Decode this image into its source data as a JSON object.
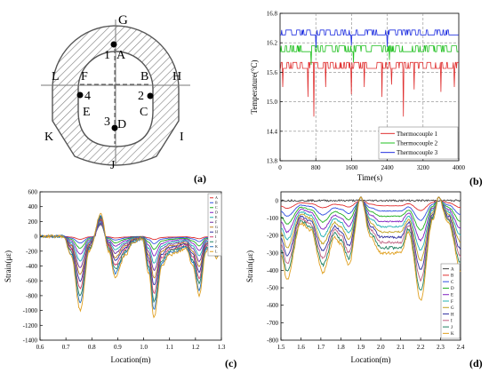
{
  "panels": {
    "a": {
      "tag": "(a)",
      "labels": {
        "G": "G",
        "A": "A",
        "B": "B",
        "C": "C",
        "D": "D",
        "E": "E",
        "F": "F",
        "H": "H",
        "I": "I",
        "J": "J",
        "K": "K",
        "L": "L",
        "n1": "1",
        "n2": "2",
        "n3": "3",
        "n4": "4"
      }
    },
    "b": {
      "tag": "(b)"
    },
    "c": {
      "tag": "(c)"
    },
    "d": {
      "tag": "(d)"
    }
  },
  "chart_data": [
    {
      "id": "b",
      "type": "line",
      "xlabel": "Time(s)",
      "ylabel": "Temperature(°C)",
      "xlim": [
        0,
        4000
      ],
      "ylim": [
        13.8,
        16.8
      ],
      "xticks": [
        0,
        800,
        1600,
        2400,
        3200,
        4000
      ],
      "yticks": [
        13.8,
        14.4,
        15.0,
        15.6,
        16.2,
        16.8
      ],
      "grid": "dashed",
      "legend": "bottom-right",
      "series": [
        {
          "name": "Thermocouple 1",
          "color": "#e03030",
          "base": 15.68,
          "band": 0.12,
          "spikes": [
            [
              60,
              15.3
            ],
            [
              150,
              15.2
            ],
            [
              620,
              15.1
            ],
            [
              760,
              14.7
            ],
            [
              1020,
              15.3
            ],
            [
              1600,
              15.15
            ],
            [
              1880,
              15.3
            ],
            [
              2280,
              15.1
            ],
            [
              2500,
              15.35
            ],
            [
              2760,
              14.7
            ],
            [
              3000,
              15.25
            ],
            [
              3450,
              15.35
            ],
            [
              3600,
              15.2
            ],
            [
              3900,
              15.3
            ]
          ]
        },
        {
          "name": "Thermocouple 2",
          "color": "#20c020",
          "base": 16.02,
          "band": 0.12,
          "spikes": [
            [
              700,
              15.75
            ],
            [
              1640,
              15.8
            ],
            [
              2450,
              15.85
            ]
          ]
        },
        {
          "name": "Thermocouple 3",
          "color": "#2030e0",
          "base": 16.36,
          "band": 0.1,
          "spikes": [
            [
              30,
              16.1
            ],
            [
              800,
              16.1
            ],
            [
              1600,
              16.15
            ],
            [
              2400,
              16.12
            ]
          ]
        }
      ]
    },
    {
      "id": "c",
      "type": "line",
      "xlabel": "Location(m)",
      "ylabel": "Strain(με)",
      "xlim": [
        0.6,
        1.3
      ],
      "ylim": [
        -1400,
        600
      ],
      "xticks": [
        0.6,
        0.7,
        0.8,
        0.9,
        1.0,
        1.1,
        1.2,
        1.3
      ],
      "yticks": [
        -1400,
        -1200,
        -1000,
        -800,
        -600,
        -400,
        -200,
        0,
        200,
        400,
        600
      ],
      "legend": "top-right",
      "series": [
        {
          "name": "A",
          "color": "#e03030",
          "k": 0.04
        },
        {
          "name": "B",
          "color": "#3050e0",
          "k": 0.09
        },
        {
          "name": "C",
          "color": "#20b020",
          "k": 0.16
        },
        {
          "name": "D",
          "color": "#8020c0",
          "k": 0.24
        },
        {
          "name": "E",
          "color": "#20b0b0",
          "k": 0.33
        },
        {
          "name": "F",
          "color": "#7030a0",
          "k": 0.42
        },
        {
          "name": "G",
          "color": "#c08020",
          "k": 0.51
        },
        {
          "name": "H",
          "color": "#3030a0",
          "k": 0.6
        },
        {
          "name": "I",
          "color": "#d04070",
          "k": 0.7
        },
        {
          "name": "J",
          "color": "#208060",
          "k": 0.8
        },
        {
          "name": "K",
          "color": "#2070c0",
          "k": 0.9
        },
        {
          "name": "L",
          "color": "#e0a020",
          "k": 1.0
        }
      ],
      "shape": {
        "peaks": [
          [
            0.835,
            300
          ],
          [
            0.995,
            -30
          ],
          [
            1.165,
            -170
          ]
        ],
        "valleys": [
          [
            0.755,
            -1000
          ],
          [
            0.89,
            -550
          ],
          [
            1.04,
            -1100
          ],
          [
            1.215,
            -800
          ],
          [
            1.28,
            -300
          ]
        ]
      }
    },
    {
      "id": "d",
      "type": "line",
      "xlabel": "Location(m)",
      "ylabel": "Strain(με)",
      "xlim": [
        1.5,
        2.4
      ],
      "ylim": [
        -800,
        50
      ],
      "xticks": [
        1.5,
        1.6,
        1.7,
        1.8,
        1.9,
        2.0,
        2.1,
        2.2,
        2.3,
        2.4
      ],
      "yticks": [
        -800,
        -700,
        -600,
        -500,
        -400,
        -300,
        -200,
        -100,
        0
      ],
      "legend": "bottom-right",
      "series": [
        {
          "name": "A",
          "color": "#404040",
          "k": 0.0
        },
        {
          "name": "B",
          "color": "#e03030",
          "k": 0.1
        },
        {
          "name": "C",
          "color": "#3050e0",
          "k": 0.2
        },
        {
          "name": "D",
          "color": "#20b020",
          "k": 0.3
        },
        {
          "name": "E",
          "color": "#8020c0",
          "k": 0.4
        },
        {
          "name": "F",
          "color": "#20b0b0",
          "k": 0.5
        },
        {
          "name": "G",
          "color": "#c0a020",
          "k": 0.6
        },
        {
          "name": "H",
          "color": "#3030a0",
          "k": 0.7
        },
        {
          "name": "I",
          "color": "#c06080",
          "k": 0.8
        },
        {
          "name": "J",
          "color": "#208060",
          "k": 0.9
        },
        {
          "name": "K",
          "color": "#e0a020",
          "k": 1.0
        }
      ],
      "shape": {
        "peaks": [
          [
            1.5,
            -300
          ],
          [
            1.9,
            20
          ],
          [
            2.29,
            20
          ]
        ],
        "valleys": [
          [
            1.53,
            -440
          ],
          [
            1.71,
            -400
          ],
          [
            1.84,
            -360
          ],
          [
            2.2,
            -560
          ],
          [
            2.4,
            -390
          ]
        ],
        "plateau": [
          [
            2.0,
            -290
          ],
          [
            2.1,
            -290
          ]
        ]
      }
    }
  ]
}
